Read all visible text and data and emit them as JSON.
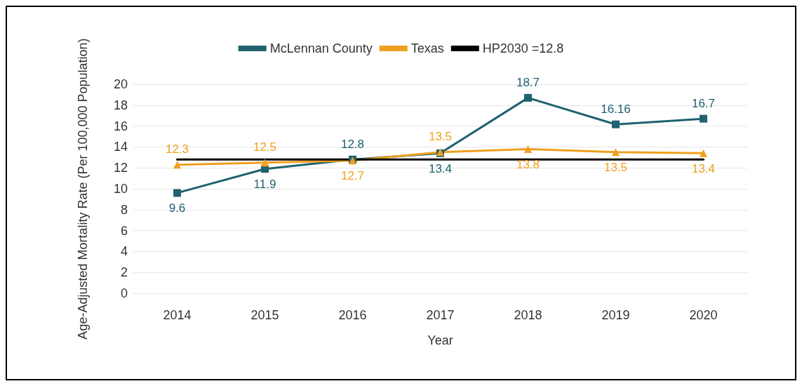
{
  "chart_data": {
    "type": "line",
    "xlabel": "Year",
    "ylabel": "Age-Adjusted Mortality Rate (Per 100,000 Population)",
    "categories": [
      "2014",
      "2015",
      "2016",
      "2017",
      "2018",
      "2019",
      "2020"
    ],
    "series": [
      {
        "name": "McLennan County",
        "color": "#1f6270",
        "marker": "square",
        "values": [
          9.6,
          11.9,
          12.8,
          13.4,
          18.7,
          16.16,
          16.7
        ],
        "value_labels": [
          "9.6",
          "11.9",
          "12.8",
          "13.4",
          "18.7",
          "16.16",
          "16.7"
        ]
      },
      {
        "name": "Texas",
        "color": "#f0a020",
        "marker": "triangle",
        "values": [
          12.3,
          12.5,
          12.7,
          13.5,
          13.8,
          13.5,
          13.4
        ],
        "value_labels": [
          "12.3",
          "12.5",
          "12.7",
          "13.5",
          "13.8",
          "13.5",
          "13.4"
        ]
      },
      {
        "name": "HP2030 =12.8",
        "color": "#000000",
        "marker": "none",
        "values": [
          12.8,
          12.8,
          12.8,
          12.8,
          12.8,
          12.8,
          12.8
        ]
      }
    ],
    "ylim": [
      0,
      20
    ],
    "yticks": [
      0,
      2,
      4,
      6,
      8,
      10,
      12,
      14,
      16,
      18,
      20
    ],
    "grid": "y",
    "legend": "top"
  }
}
